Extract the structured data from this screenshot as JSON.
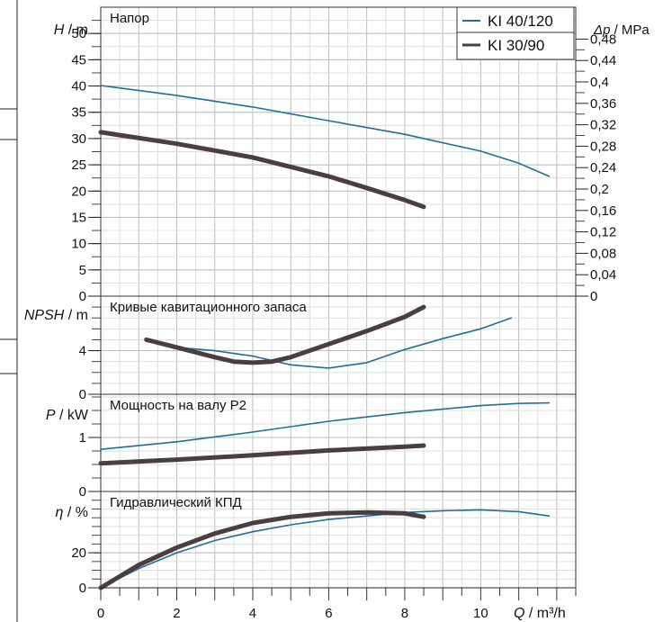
{
  "chart_data": {
    "type": "line",
    "x_axis": {
      "label": "Q / m³/h",
      "label_var": "Q",
      "label_unit": "/ m³/h",
      "min": 0,
      "max": 12.5,
      "ticks": [
        0,
        2,
        4,
        6,
        8,
        10
      ],
      "minor_step": 0.5
    },
    "legend": {
      "placement": "top-right",
      "entries": [
        {
          "name": "KI 40/120",
          "color": "#1f6e99"
        },
        {
          "name": "KI 30/90",
          "color": "#4a3d44"
        }
      ]
    },
    "panels": [
      {
        "id": "head",
        "title": "Напор",
        "ylabel_var": "H",
        "ylabel_unit": "/ m",
        "ylim": [
          0,
          55
        ],
        "yticks": [
          0,
          5,
          10,
          15,
          20,
          25,
          30,
          35,
          40,
          45,
          50
        ],
        "secondary_axis": {
          "label_var": "Δp",
          "label_unit": "/ MPa",
          "ticks": [
            "0",
            "0,04",
            "0,08",
            "0,12",
            "0,16",
            "0,2",
            "0,24",
            "0,28",
            "0,32",
            "0,36",
            "0,4",
            "0,44",
            "0,48"
          ],
          "min": 0,
          "step": 0.04,
          "per_primary_unit": 0.00981
        },
        "series": [
          {
            "name": "KI 40/120",
            "x": [
              0,
              2,
              4,
              6,
              8,
              10,
              11,
              11.8
            ],
            "y": [
              40.1,
              38.2,
              36.0,
              33.4,
              30.8,
              27.6,
              25.3,
              22.8
            ]
          },
          {
            "name": "KI 30/90",
            "x": [
              0,
              2,
              4,
              6,
              7,
              8,
              8.5
            ],
            "y": [
              31.2,
              29.0,
              26.4,
              22.8,
              20.6,
              18.3,
              17.0
            ]
          }
        ]
      },
      {
        "id": "npsh",
        "title": "Кривые кавитационного запаса",
        "ylabel_var": "NPSH",
        "ylabel_unit": "/ m",
        "ylim": [
          0,
          9
        ],
        "yticks": [
          0,
          4
        ],
        "series": [
          {
            "name": "KI 40/120",
            "x": [
              2,
              3,
              4,
              5,
              6,
              7,
              8,
              9,
              10,
              10.8
            ],
            "y": [
              4.3,
              4.0,
              3.5,
              2.7,
              2.4,
              2.9,
              4.1,
              5.1,
              6.0,
              7.0
            ]
          },
          {
            "name": "KI 30/90",
            "x": [
              1.2,
              2,
              3,
              3.5,
              4,
              4.5,
              5,
              6,
              7,
              8,
              8.5
            ],
            "y": [
              5.0,
              4.3,
              3.4,
              3.0,
              2.9,
              3.0,
              3.4,
              4.6,
              5.8,
              7.1,
              8.0
            ]
          }
        ]
      },
      {
        "id": "power",
        "title": "Мощность на валу P2",
        "ylabel_var": "P",
        "ylabel_unit": "/ kW",
        "ylim": [
          0,
          1.8
        ],
        "yticks": [
          0,
          1
        ],
        "series": [
          {
            "name": "KI 40/120",
            "x": [
              0,
              2,
              4,
              6,
              8,
              10,
              11,
              11.8
            ],
            "y": [
              0.78,
              0.92,
              1.1,
              1.3,
              1.46,
              1.59,
              1.63,
              1.64
            ]
          },
          {
            "name": "KI 30/90",
            "x": [
              0,
              2,
              4,
              6,
              8,
              8.5
            ],
            "y": [
              0.52,
              0.59,
              0.67,
              0.76,
              0.83,
              0.85
            ]
          }
        ]
      },
      {
        "id": "efficiency",
        "title": "Гидравлический КПД",
        "ylabel_var": "η",
        "ylabel_unit": "/ %",
        "ylim": [
          0,
          55
        ],
        "yticks": [
          0,
          20
        ],
        "series": [
          {
            "name": "KI 40/120",
            "x": [
              0,
              1,
              2,
              3,
              4,
              5,
              6,
              7,
              8,
              9,
              10,
              11,
              11.8
            ],
            "y": [
              0,
              11,
              20,
              27,
              32,
              36,
              39,
              41,
              43,
              44,
              44.5,
              43.5,
              41
            ]
          },
          {
            "name": "KI 30/90",
            "x": [
              0,
              1,
              2,
              3,
              4,
              5,
              6,
              7,
              8,
              8.5
            ],
            "y": [
              0,
              13,
              23,
              31,
              37,
              40.5,
              42.5,
              43,
              42.5,
              40.5
            ]
          }
        ]
      }
    ]
  }
}
